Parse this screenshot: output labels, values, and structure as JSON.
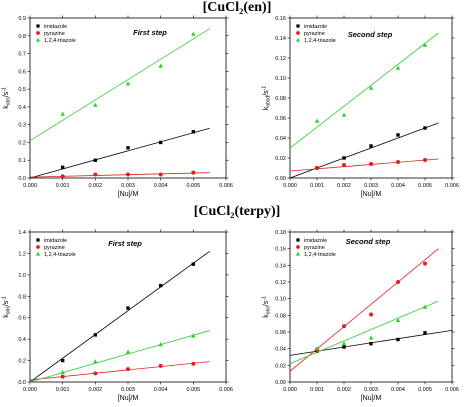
{
  "sections": [
    {
      "title": "[CuCl₂(en)]"
    },
    {
      "title": "[CuCl₂(terpy)]"
    }
  ],
  "chart_data": [
    {
      "type": "scatter",
      "title": "First step",
      "xlabel": "[Nu]/M",
      "ylabel": "k_obs/s^-1",
      "xlim": [
        0,
        0.006
      ],
      "ylim": [
        0,
        0.9
      ],
      "xticks": [
        "0.000",
        "0.001",
        "0.002",
        "0.003",
        "0.004",
        "0.005",
        "0.006"
      ],
      "yticks": [
        "0.0",
        "0.1",
        "0.2",
        "0.3",
        "0.4",
        "0.5",
        "0.6",
        "0.7",
        "0.8",
        "0.9"
      ],
      "legend_position": "top-left",
      "series": [
        {
          "name": "imidazole",
          "color": "#000000",
          "marker": "square",
          "x": [
            0.001,
            0.002,
            0.003,
            0.004,
            0.005
          ],
          "y": [
            0.06,
            0.1,
            0.17,
            0.2,
            0.26
          ],
          "fit": {
            "x": [
              0,
              0.0055
            ],
            "y": [
              0.0,
              0.28
            ]
          }
        },
        {
          "name": "pyrazine",
          "color": "#e02020",
          "marker": "circle",
          "x": [
            0.001,
            0.002,
            0.003,
            0.004,
            0.005
          ],
          "y": [
            0.01,
            0.02,
            0.02,
            0.02,
            0.03
          ],
          "fit": {
            "x": [
              0,
              0.0055
            ],
            "y": [
              0.005,
              0.03
            ]
          }
        },
        {
          "name": "1,2,4-triazole",
          "color": "#33cc33",
          "marker": "triangle",
          "x": [
            0.001,
            0.002,
            0.003,
            0.004,
            0.005
          ],
          "y": [
            0.36,
            0.41,
            0.53,
            0.63,
            0.81
          ],
          "fit": {
            "x": [
              0,
              0.0055
            ],
            "y": [
              0.21,
              0.84
            ]
          }
        }
      ]
    },
    {
      "type": "scatter",
      "title": "Second step",
      "xlabel": "[Nu]/M",
      "ylabel": "k_obsd/s^-1",
      "xlim": [
        0,
        0.006
      ],
      "ylim": [
        0,
        0.16
      ],
      "xticks": [
        "0.000",
        "0.001",
        "0.002",
        "0.003",
        "0.004",
        "0.005",
        "0.006"
      ],
      "yticks": [
        "0.00",
        "0.02",
        "0.04",
        "0.06",
        "0.08",
        "0.10",
        "0.12",
        "0.14",
        "0.16"
      ],
      "legend_position": "top-left",
      "series": [
        {
          "name": "imidazole",
          "color": "#000000",
          "marker": "square",
          "x": [
            0.001,
            0.002,
            0.003,
            0.004,
            0.005
          ],
          "y": [
            0.01,
            0.02,
            0.032,
            0.043,
            0.05
          ],
          "fit": {
            "x": [
              0,
              0.0055
            ],
            "y": [
              0.0,
              0.055
            ]
          }
        },
        {
          "name": "pyrazine",
          "color": "#e02020",
          "marker": "circle",
          "x": [
            0.001,
            0.002,
            0.003,
            0.004,
            0.005
          ],
          "y": [
            0.01,
            0.013,
            0.014,
            0.016,
            0.018
          ],
          "fit": {
            "x": [
              0,
              0.0055
            ],
            "y": [
              0.007,
              0.019
            ]
          }
        },
        {
          "name": "1,2,4-triazole",
          "color": "#33cc33",
          "marker": "triangle",
          "x": [
            0.001,
            0.002,
            0.003,
            0.004,
            0.005
          ],
          "y": [
            0.057,
            0.063,
            0.09,
            0.11,
            0.133
          ],
          "fit": {
            "x": [
              0,
              0.0055
            ],
            "y": [
              0.03,
              0.145
            ]
          }
        }
      ]
    },
    {
      "type": "scatter",
      "title": "First step",
      "xlabel": "[Nu]/M",
      "ylabel": "k_obs/s^-1",
      "xlim": [
        0,
        0.006
      ],
      "ylim": [
        0,
        1.4
      ],
      "xticks": [
        "0.000",
        "0.001",
        "0.002",
        "0.003",
        "0.004",
        "0.005",
        "0.006"
      ],
      "yticks": [
        "0.0",
        "0.2",
        "0.4",
        "0.6",
        "0.8",
        "1.0",
        "1.2",
        "1.4"
      ],
      "legend_position": "top-left",
      "series": [
        {
          "name": "imidazole",
          "color": "#000000",
          "marker": "square",
          "x": [
            0.001,
            0.002,
            0.003,
            0.004,
            0.005
          ],
          "y": [
            0.2,
            0.44,
            0.69,
            0.9,
            1.1
          ],
          "fit": {
            "x": [
              0,
              0.0055
            ],
            "y": [
              0.0,
              1.22
            ]
          }
        },
        {
          "name": "pyrazine",
          "color": "#e02020",
          "marker": "circle",
          "x": [
            0.001,
            0.002,
            0.003,
            0.004,
            0.005
          ],
          "y": [
            0.05,
            0.08,
            0.12,
            0.15,
            0.17
          ],
          "fit": {
            "x": [
              0,
              0.0055
            ],
            "y": [
              0.02,
              0.19
            ]
          }
        },
        {
          "name": "1,2,4-triazole",
          "color": "#33cc33",
          "marker": "triangle",
          "x": [
            0.001,
            0.002,
            0.003,
            0.004,
            0.005
          ],
          "y": [
            0.09,
            0.19,
            0.28,
            0.35,
            0.43
          ],
          "fit": {
            "x": [
              0,
              0.0055
            ],
            "y": [
              0.0,
              0.48
            ]
          }
        }
      ]
    },
    {
      "type": "scatter",
      "title": "Second step",
      "xlabel": "[Nu]/M",
      "ylabel": "k_obs/s^-1",
      "xlim": [
        0,
        0.006
      ],
      "ylim": [
        0,
        0.18
      ],
      "xticks": [
        "0.000",
        "0.001",
        "0.002",
        "0.003",
        "0.004",
        "0.005",
        "0.006"
      ],
      "yticks": [
        "0.00",
        "0.02",
        "0.04",
        "0.06",
        "0.08",
        "0.10",
        "0.12",
        "0.14",
        "0.16",
        "0.18"
      ],
      "legend_position": "top-left",
      "series": [
        {
          "name": "imidazole",
          "color": "#000000",
          "marker": "square",
          "x": [
            0.001,
            0.002,
            0.003,
            0.004,
            0.005
          ],
          "y": [
            0.037,
            0.042,
            0.046,
            0.051,
            0.059
          ],
          "fit": {
            "x": [
              0,
              0.006
            ],
            "y": [
              0.032,
              0.062
            ]
          }
        },
        {
          "name": "pyrazine",
          "color": "#e02020",
          "marker": "circle",
          "x": [
            0.001,
            0.002,
            0.003,
            0.004,
            0.005
          ],
          "y": [
            0.039,
            0.067,
            0.081,
            0.12,
            0.142
          ],
          "fit": {
            "x": [
              0,
              0.0055
            ],
            "y": [
              0.013,
              0.16
            ]
          }
        },
        {
          "name": "1,2,4-triazole",
          "color": "#33cc33",
          "marker": "triangle",
          "x": [
            0.001,
            0.002,
            0.003,
            0.004,
            0.005
          ],
          "y": [
            0.04,
            0.046,
            0.053,
            0.074,
            0.09
          ],
          "fit": {
            "x": [
              0,
              0.0055
            ],
            "y": [
              0.022,
              0.097
            ]
          }
        }
      ]
    }
  ]
}
